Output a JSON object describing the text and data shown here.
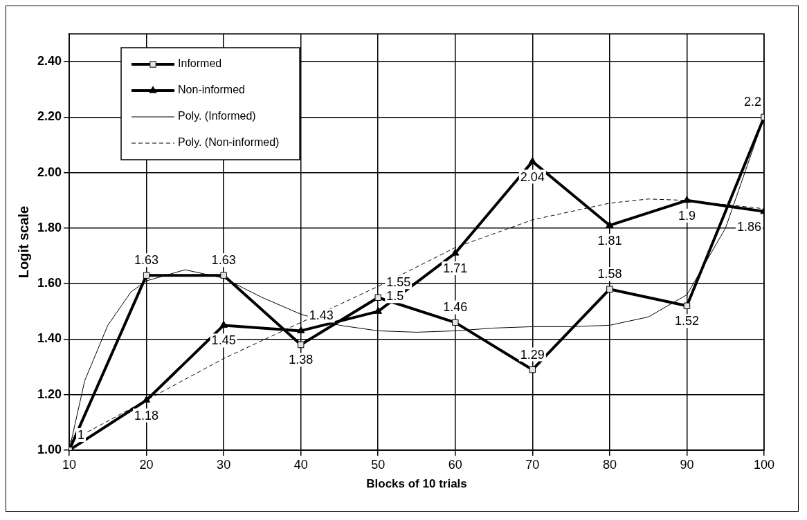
{
  "chart_data": {
    "type": "line",
    "xlabel": "Blocks of 10 trials",
    "ylabel": "Logit scale",
    "x": [
      10,
      20,
      30,
      40,
      50,
      60,
      70,
      80,
      90,
      100
    ],
    "series": [
      {
        "name": "Informed",
        "color": "#000000",
        "marker": "square",
        "values": [
          1.0,
          1.63,
          1.63,
          1.38,
          1.55,
          1.46,
          1.29,
          1.58,
          1.52,
          2.2
        ],
        "value_labels": [
          null,
          "1.63",
          "1.63",
          "1.38",
          "1.55",
          "1.46",
          "1.29",
          "1.58",
          "1.52",
          "2.2"
        ]
      },
      {
        "name": "Non-informed",
        "color": "#000000",
        "marker": "triangle",
        "values": [
          1.0,
          1.18,
          1.45,
          1.43,
          1.5,
          1.71,
          2.04,
          1.81,
          1.9,
          1.86
        ],
        "value_labels": [
          "1",
          "1.18",
          "1.45",
          "1.43",
          "1.5",
          "1.71",
          "2.04",
          "1.81",
          "1.9",
          "1.86"
        ]
      },
      {
        "name": "Poly. (Informed)",
        "color": "#000000",
        "marker": "none",
        "line_style": "solid",
        "x": [
          10,
          12,
          15,
          18,
          20,
          25,
          30,
          35,
          40,
          45,
          50,
          55,
          60,
          65,
          70,
          75,
          80,
          85,
          90,
          95,
          100
        ],
        "values": [
          1.0,
          1.25,
          1.45,
          1.57,
          1.61,
          1.65,
          1.62,
          1.55,
          1.49,
          1.45,
          1.43,
          1.425,
          1.43,
          1.44,
          1.445,
          1.445,
          1.45,
          1.48,
          1.56,
          1.8,
          2.2
        ]
      },
      {
        "name": "Poly. (Non-informed)",
        "color": "#000000",
        "marker": "none",
        "line_style": "dashed",
        "x": [
          10,
          20,
          30,
          40,
          50,
          60,
          70,
          80,
          85,
          90,
          100
        ],
        "values": [
          1.03,
          1.18,
          1.33,
          1.46,
          1.59,
          1.73,
          1.83,
          1.89,
          1.905,
          1.9,
          1.87
        ]
      }
    ],
    "xlim": [
      10,
      100
    ],
    "xticks": [
      10,
      20,
      30,
      40,
      50,
      60,
      70,
      80,
      90,
      100
    ],
    "ylim": [
      1,
      2.5
    ],
    "yticks": [
      {
        "value": 1,
        "label": "1.00"
      },
      {
        "value": 1.2,
        "label": "1.20"
      },
      {
        "value": 1.4,
        "label": "1.40"
      },
      {
        "value": 1.6,
        "label": "1.60"
      },
      {
        "value": 1.8,
        "label": "1.80"
      },
      {
        "value": 2,
        "label": "2.00"
      },
      {
        "value": 2.2,
        "label": "2.20"
      },
      {
        "value": 2.4,
        "label": "2.40"
      }
    ],
    "grid": true,
    "legend": "top left"
  }
}
